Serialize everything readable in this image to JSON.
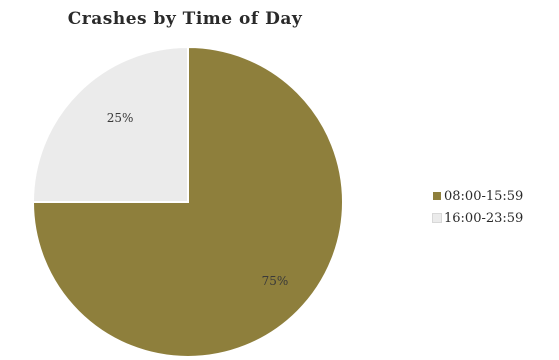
{
  "chart_data": {
    "type": "pie",
    "title": "Crashes by Time of Day",
    "categories": [
      "08:00-15:59",
      "16:00-23:59"
    ],
    "values": [
      75,
      25
    ],
    "labels": [
      "75%",
      "25%"
    ],
    "colors": [
      "#8e7f3c",
      "#ebebeb"
    ],
    "legend_position": "right",
    "start_angle_deg": 0,
    "direction": "clockwise"
  }
}
